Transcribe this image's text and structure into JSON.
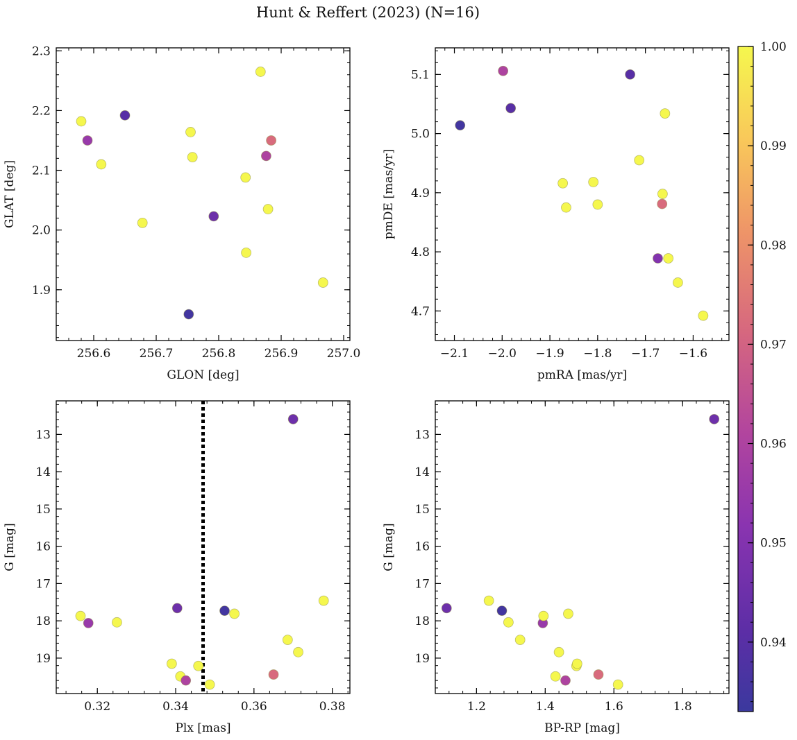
{
  "figure": {
    "title": "Hunt & Reffert (2023) (N=16)"
  },
  "colorbar": {
    "min": 0.933,
    "max": 1.0,
    "ticks": [
      "0.94",
      "0.95",
      "0.96",
      "0.97",
      "0.98",
      "0.99",
      "1.00"
    ],
    "tick_values": [
      0.94,
      0.95,
      0.96,
      0.97,
      0.98,
      0.99,
      1.0
    ],
    "colormap": "plasma"
  },
  "chart_data": [
    {
      "type": "scatter",
      "xlabel": "GLON [deg]",
      "ylabel": "GLAT [deg]",
      "xlim": [
        256.54,
        257.01
      ],
      "ylim": [
        1.815,
        2.305
      ],
      "xticks": [
        256.6,
        256.7,
        256.8,
        256.9,
        257.0
      ],
      "xticklabels": [
        "256.6",
        "256.7",
        "256.8",
        "256.9",
        "257.0"
      ],
      "yticks": [
        1.9,
        2.0,
        2.1,
        2.2,
        2.3
      ],
      "yticklabels": [
        "1.9",
        "2.0",
        "2.1",
        "2.2",
        "2.3"
      ],
      "invert_y": false,
      "points": [
        {
          "x": 256.58,
          "y": 2.182,
          "c": 1.0
        },
        {
          "x": 256.59,
          "y": 2.15,
          "c": 0.955
        },
        {
          "x": 256.612,
          "y": 2.11,
          "c": 1.0
        },
        {
          "x": 256.65,
          "y": 2.192,
          "c": 0.94
        },
        {
          "x": 256.678,
          "y": 2.012,
          "c": 1.0
        },
        {
          "x": 256.755,
          "y": 2.164,
          "c": 1.0
        },
        {
          "x": 256.758,
          "y": 2.122,
          "c": 1.0
        },
        {
          "x": 256.752,
          "y": 1.859,
          "c": 0.935
        },
        {
          "x": 256.792,
          "y": 2.023,
          "c": 0.945
        },
        {
          "x": 256.843,
          "y": 2.088,
          "c": 1.0
        },
        {
          "x": 256.844,
          "y": 1.962,
          "c": 1.0
        },
        {
          "x": 256.867,
          "y": 2.265,
          "c": 1.0
        },
        {
          "x": 256.876,
          "y": 2.124,
          "c": 0.96
        },
        {
          "x": 256.879,
          "y": 2.035,
          "c": 1.0
        },
        {
          "x": 256.884,
          "y": 2.15,
          "c": 0.972
        },
        {
          "x": 256.967,
          "y": 1.912,
          "c": 1.0
        }
      ]
    },
    {
      "type": "scatter",
      "xlabel": "pmRA [mas/yr]",
      "ylabel": "pmDE [mas/yr]",
      "xlim": [
        -2.14,
        -1.525
      ],
      "ylim": [
        4.65,
        5.145
      ],
      "xticks": [
        -2.1,
        -2.0,
        -1.9,
        -1.8,
        -1.7,
        -1.6
      ],
      "xticklabels": [
        "−2.1",
        "−2.0",
        "−1.9",
        "−1.8",
        "−1.7",
        "−1.6"
      ],
      "yticks": [
        4.7,
        4.8,
        4.9,
        5.0,
        5.1
      ],
      "yticklabels": [
        "4.7",
        "4.8",
        "4.9",
        "5.0",
        "5.1"
      ],
      "invert_y": false,
      "points": [
        {
          "x": -2.088,
          "y": 5.014,
          "c": 0.935
        },
        {
          "x": -1.998,
          "y": 5.106,
          "c": 0.96
        },
        {
          "x": -1.982,
          "y": 5.043,
          "c": 0.94
        },
        {
          "x": -1.873,
          "y": 4.916,
          "c": 1.0
        },
        {
          "x": -1.866,
          "y": 4.875,
          "c": 1.0
        },
        {
          "x": -1.809,
          "y": 4.918,
          "c": 1.0
        },
        {
          "x": -1.8,
          "y": 4.88,
          "c": 1.0
        },
        {
          "x": -1.732,
          "y": 5.1,
          "c": 0.94
        },
        {
          "x": -1.713,
          "y": 4.955,
          "c": 1.0
        },
        {
          "x": -1.674,
          "y": 4.789,
          "c": 0.95
        },
        {
          "x": -1.665,
          "y": 4.881,
          "c": 0.972
        },
        {
          "x": -1.664,
          "y": 4.898,
          "c": 1.0
        },
        {
          "x": -1.659,
          "y": 5.034,
          "c": 1.0
        },
        {
          "x": -1.652,
          "y": 4.789,
          "c": 1.0
        },
        {
          "x": -1.632,
          "y": 4.748,
          "c": 1.0
        },
        {
          "x": -1.579,
          "y": 4.692,
          "c": 1.0
        }
      ]
    },
    {
      "type": "scatter",
      "xlabel": "Plx [mas]",
      "ylabel": "G [mag]",
      "xlim": [
        0.3095,
        0.3845
      ],
      "ylim": [
        12.1,
        19.95
      ],
      "xticks": [
        0.32,
        0.34,
        0.36,
        0.38
      ],
      "xticklabels": [
        "0.32",
        "0.34",
        "0.36",
        "0.38"
      ],
      "yticks": [
        13,
        14,
        15,
        16,
        17,
        18,
        19
      ],
      "yticklabels": [
        "13",
        "14",
        "15",
        "16",
        "17",
        "18",
        "19"
      ],
      "invert_y": true,
      "vline": 0.347,
      "points": [
        {
          "x": 0.3157,
          "y": 17.87,
          "c": 1.0
        },
        {
          "x": 0.3177,
          "y": 18.06,
          "c": 0.955
        },
        {
          "x": 0.325,
          "y": 18.04,
          "c": 1.0
        },
        {
          "x": 0.339,
          "y": 19.15,
          "c": 1.0
        },
        {
          "x": 0.3404,
          "y": 17.66,
          "c": 0.945
        },
        {
          "x": 0.3412,
          "y": 19.49,
          "c": 1.0
        },
        {
          "x": 0.3426,
          "y": 19.6,
          "c": 0.96
        },
        {
          "x": 0.3458,
          "y": 19.21,
          "c": 1.0
        },
        {
          "x": 0.3487,
          "y": 19.71,
          "c": 1.0
        },
        {
          "x": 0.3525,
          "y": 17.73,
          "c": 0.935
        },
        {
          "x": 0.355,
          "y": 17.81,
          "c": 1.0
        },
        {
          "x": 0.365,
          "y": 19.44,
          "c": 0.972
        },
        {
          "x": 0.3686,
          "y": 18.51,
          "c": 1.0
        },
        {
          "x": 0.37,
          "y": 12.59,
          "c": 0.945
        },
        {
          "x": 0.3713,
          "y": 18.84,
          "c": 1.0
        },
        {
          "x": 0.3778,
          "y": 17.46,
          "c": 1.0
        }
      ]
    },
    {
      "type": "scatter",
      "xlabel": "BP-RP [mag]",
      "ylabel": "G [mag]",
      "xlim": [
        1.08,
        1.935
      ],
      "ylim": [
        12.1,
        19.95
      ],
      "xticks": [
        1.2,
        1.4,
        1.6,
        1.8
      ],
      "xticklabels": [
        "1.2",
        "1.4",
        "1.6",
        "1.8"
      ],
      "yticks": [
        13,
        14,
        15,
        16,
        17,
        18,
        19
      ],
      "yticklabels": [
        "13",
        "14",
        "15",
        "16",
        "17",
        "18",
        "19"
      ],
      "invert_y": true,
      "points": [
        {
          "x": 1.113,
          "y": 17.66,
          "c": 0.945
        },
        {
          "x": 1.236,
          "y": 17.46,
          "c": 1.0
        },
        {
          "x": 1.274,
          "y": 17.73,
          "c": 0.935
        },
        {
          "x": 1.293,
          "y": 18.04,
          "c": 1.0
        },
        {
          "x": 1.327,
          "y": 18.51,
          "c": 1.0
        },
        {
          "x": 1.393,
          "y": 18.06,
          "c": 0.955
        },
        {
          "x": 1.395,
          "y": 17.87,
          "c": 1.0
        },
        {
          "x": 1.43,
          "y": 19.49,
          "c": 1.0
        },
        {
          "x": 1.44,
          "y": 18.84,
          "c": 1.0
        },
        {
          "x": 1.459,
          "y": 19.6,
          "c": 0.96
        },
        {
          "x": 1.467,
          "y": 17.81,
          "c": 1.0
        },
        {
          "x": 1.491,
          "y": 19.21,
          "c": 1.0
        },
        {
          "x": 1.493,
          "y": 19.15,
          "c": 1.0
        },
        {
          "x": 1.555,
          "y": 19.44,
          "c": 0.972
        },
        {
          "x": 1.612,
          "y": 19.71,
          "c": 1.0
        },
        {
          "x": 1.892,
          "y": 12.59,
          "c": 0.945
        }
      ]
    }
  ]
}
